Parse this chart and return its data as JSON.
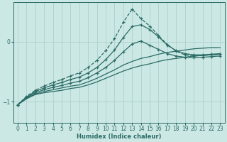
{
  "xlabel": "Humidex (Indice chaleur)",
  "ylabel": "",
  "bg_color": "#cce8e5",
  "grid_color": "#b0d4d0",
  "line_color": "#2a6b65",
  "xlim": [
    -0.5,
    23.5
  ],
  "ylim": [
    -1.35,
    0.65
  ],
  "yticks": [
    -1,
    0
  ],
  "xticks": [
    0,
    1,
    2,
    3,
    4,
    5,
    6,
    7,
    8,
    9,
    10,
    11,
    12,
    13,
    14,
    15,
    16,
    17,
    18,
    19,
    20,
    21,
    22,
    23
  ],
  "lines": [
    {
      "x": [
        0,
        1,
        2,
        3,
        4,
        5,
        6,
        7,
        8,
        9,
        10,
        11,
        12,
        13,
        14,
        15,
        16,
        17,
        18,
        19,
        20,
        21,
        22,
        23
      ],
      "y": [
        -1.05,
        -0.95,
        -0.88,
        -0.85,
        -0.83,
        -0.81,
        -0.78,
        -0.76,
        -0.72,
        -0.67,
        -0.61,
        -0.55,
        -0.49,
        -0.44,
        -0.4,
        -0.37,
        -0.33,
        -0.3,
        -0.28,
        -0.26,
        -0.24,
        -0.23,
        -0.22,
        -0.21
      ],
      "marker": false,
      "dashed": false
    },
    {
      "x": [
        0,
        1,
        2,
        3,
        4,
        5,
        6,
        7,
        8,
        9,
        10,
        11,
        12,
        13,
        14,
        15,
        16,
        17,
        18,
        19,
        20,
        21,
        22,
        23
      ],
      "y": [
        -1.05,
        -0.94,
        -0.87,
        -0.83,
        -0.8,
        -0.77,
        -0.74,
        -0.72,
        -0.67,
        -0.61,
        -0.54,
        -0.47,
        -0.39,
        -0.33,
        -0.28,
        -0.25,
        -0.21,
        -0.18,
        -0.16,
        -0.14,
        -0.12,
        -0.11,
        -0.1,
        -0.1
      ],
      "marker": false,
      "dashed": false
    },
    {
      "x": [
        0,
        1,
        2,
        3,
        4,
        5,
        6,
        7,
        8,
        9,
        10,
        11,
        12,
        13,
        14,
        15,
        16,
        17,
        18,
        19,
        20,
        21,
        22,
        23
      ],
      "y": [
        -1.05,
        -0.93,
        -0.85,
        -0.8,
        -0.76,
        -0.73,
        -0.69,
        -0.66,
        -0.6,
        -0.52,
        -0.43,
        -0.31,
        -0.17,
        -0.04,
        0.01,
        -0.06,
        -0.13,
        -0.2,
        -0.24,
        -0.26,
        -0.27,
        -0.26,
        -0.25,
        -0.24
      ],
      "marker": true,
      "dashed": false
    },
    {
      "x": [
        0,
        1,
        2,
        3,
        4,
        5,
        6,
        7,
        8,
        9,
        10,
        11,
        12,
        13,
        14,
        15,
        16,
        17,
        18,
        19,
        20,
        21,
        22,
        23
      ],
      "y": [
        -1.05,
        -0.92,
        -0.83,
        -0.77,
        -0.72,
        -0.68,
        -0.63,
        -0.59,
        -0.52,
        -0.43,
        -0.3,
        -0.14,
        0.07,
        0.25,
        0.28,
        0.2,
        0.08,
        -0.06,
        -0.15,
        -0.2,
        -0.22,
        -0.22,
        -0.21,
        -0.2
      ],
      "marker": true,
      "dashed": false
    },
    {
      "x": [
        0,
        1,
        2,
        3,
        4,
        5,
        6,
        7,
        8,
        9,
        10,
        11,
        12,
        13,
        14,
        15,
        16,
        17,
        18,
        19,
        20,
        21,
        22,
        23
      ],
      "y": [
        -1.05,
        -0.91,
        -0.81,
        -0.74,
        -0.68,
        -0.63,
        -0.57,
        -0.52,
        -0.43,
        -0.31,
        -0.15,
        0.05,
        0.32,
        0.54,
        0.38,
        0.26,
        0.1,
        -0.05,
        -0.16,
        -0.22,
        -0.24,
        -0.23,
        -0.22,
        -0.21
      ],
      "marker": true,
      "dashed": true
    }
  ]
}
